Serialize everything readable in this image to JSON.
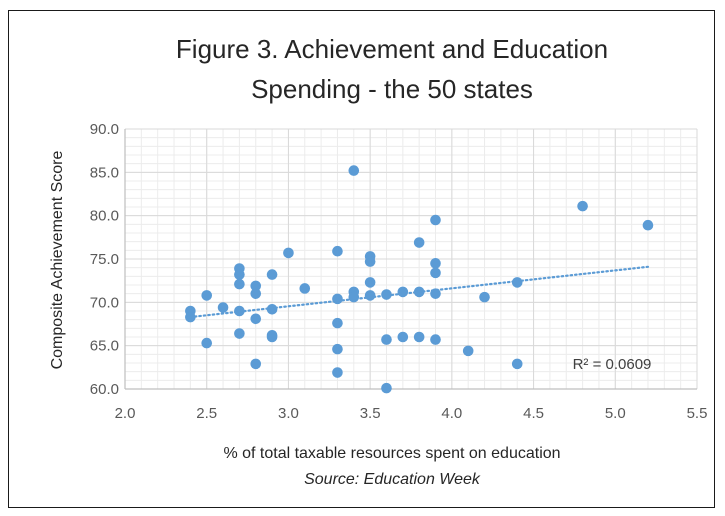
{
  "chart_data": {
    "type": "scatter",
    "title_lines": [
      "Figure 3. Achievement and Education",
      "Spending - the 50 states"
    ],
    "xlabel": "% of total  taxable resources spent on education",
    "ylabel": "Composite Achievement Score",
    "source_note": "Source: Education Week",
    "xlim": [
      2.0,
      5.5
    ],
    "ylim": [
      60.0,
      90.0
    ],
    "x_ticks": [
      "2.0",
      "2.5",
      "3.0",
      "3.5",
      "4.0",
      "4.5",
      "5.0",
      "5.5"
    ],
    "y_ticks": [
      "60.0",
      "65.0",
      "70.0",
      "75.0",
      "80.0",
      "85.0",
      "90.0"
    ],
    "grid": true,
    "marker_color": "#5b9bd5",
    "trendline": {
      "style": "dotted",
      "color": "#5b9bd5",
      "x_range": [
        2.4,
        5.2
      ],
      "y_start": 68.3,
      "y_end": 74.1,
      "r_squared_label": "R² = 0.0609"
    },
    "points": [
      [
        2.4,
        69.0
      ],
      [
        2.4,
        68.3
      ],
      [
        2.5,
        70.8
      ],
      [
        2.5,
        65.3
      ],
      [
        2.6,
        69.4
      ],
      [
        2.7,
        73.9
      ],
      [
        2.7,
        73.2
      ],
      [
        2.7,
        72.1
      ],
      [
        2.7,
        69.0
      ],
      [
        2.7,
        66.4
      ],
      [
        2.8,
        71.9
      ],
      [
        2.8,
        71.0
      ],
      [
        2.8,
        68.1
      ],
      [
        2.8,
        62.9
      ],
      [
        2.9,
        73.2
      ],
      [
        2.9,
        69.2
      ],
      [
        2.9,
        66.2
      ],
      [
        2.9,
        66.0
      ],
      [
        3.0,
        75.7
      ],
      [
        3.1,
        71.6
      ],
      [
        3.3,
        75.9
      ],
      [
        3.3,
        70.4
      ],
      [
        3.3,
        67.6
      ],
      [
        3.3,
        64.6
      ],
      [
        3.3,
        61.9
      ],
      [
        3.4,
        85.2
      ],
      [
        3.4,
        71.2
      ],
      [
        3.4,
        70.6
      ],
      [
        3.5,
        75.3
      ],
      [
        3.5,
        74.7
      ],
      [
        3.5,
        72.3
      ],
      [
        3.5,
        70.8
      ],
      [
        3.6,
        70.9
      ],
      [
        3.6,
        65.7
      ],
      [
        3.6,
        60.1
      ],
      [
        3.7,
        71.2
      ],
      [
        3.7,
        66.0
      ],
      [
        3.8,
        76.9
      ],
      [
        3.8,
        71.2
      ],
      [
        3.8,
        66.0
      ],
      [
        3.9,
        79.5
      ],
      [
        3.9,
        74.5
      ],
      [
        3.9,
        73.4
      ],
      [
        3.9,
        71.0
      ],
      [
        3.9,
        65.7
      ],
      [
        4.1,
        64.4
      ],
      [
        4.2,
        70.6
      ],
      [
        4.4,
        72.3
      ],
      [
        4.4,
        62.9
      ],
      [
        4.8,
        81.1
      ],
      [
        5.2,
        78.9
      ]
    ]
  }
}
